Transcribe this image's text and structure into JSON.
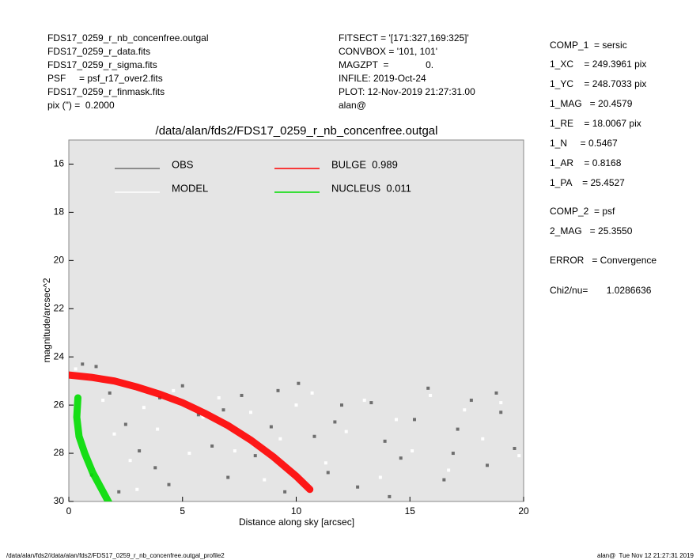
{
  "header": {
    "left": [
      "FDS17_0259_r_nb_concenfree.outgal",
      "FDS17_0259_r_data.fits",
      "FDS17_0259_r_sigma.fits",
      "PSF     = psf_r17_over2.fits",
      "FDS17_0259_r_finmask.fits",
      "pix (\") =  0.2000"
    ],
    "middle": [
      "FITSECT = '[171:327,169:325]'",
      "CONVBOX = '101, 101'",
      "MAGZPT  =              0.",
      "INFILE: 2019-Oct-24",
      "PLOT: 12-Nov-2019 21:27:31.00",
      "alan@"
    ]
  },
  "params": [
    "COMP_1  = sersic",
    "1_XC    = 249.3961 pix",
    "1_YC    = 248.7033 pix",
    "1_MAG   = 20.4579",
    "1_RE    = 18.0067 pix",
    "1_N     = 0.5467",
    "1_AR    = 0.8168",
    "1_PA    = 25.4527",
    "COMP_2  = psf",
    "2_MAG   = 25.3550",
    "ERROR   = Convergence",
    "Chi2/nu=       1.0286636"
  ],
  "footer": {
    "left": "/data/alan/fds2//data/alan/fds2/FDS17_0259_r_nb_concenfree.outgal_profile2",
    "right": "alan@  Tue Nov 12 21:27:31 2019"
  },
  "chart_data": {
    "type": "scatter",
    "title": "/data/alan/fds2/FDS17_0259_r_nb_concenfree.outgal",
    "x_label": "Distance along sky [arcsec]",
    "y_label": "magnitude/arcsec^2",
    "xlim": [
      0,
      20
    ],
    "ylim": [
      30,
      15
    ],
    "xticks": [
      0,
      5,
      10,
      15,
      20
    ],
    "yticks": [
      16,
      18,
      20,
      22,
      24,
      26,
      28,
      30
    ],
    "background": "#e5e5e5",
    "series": [
      {
        "name": "OBS",
        "color": "#6e6e6e",
        "kind": "points",
        "x": [
          0.6,
          1.2,
          1.8,
          2.5,
          3.1,
          3.8,
          4.4,
          5.0,
          5.7,
          6.3,
          7.0,
          7.6,
          8.2,
          8.9,
          9.5,
          10.1,
          10.8,
          11.4,
          12.0,
          12.7,
          13.3,
          13.9,
          14.6,
          15.2,
          15.8,
          16.5,
          17.1,
          17.7,
          18.4,
          19.0,
          19.6,
          2.2,
          4.0,
          6.8,
          9.2,
          11.7,
          14.1,
          16.9,
          18.8,
          1.0
        ],
        "values": [
          24.3,
          24.4,
          25.5,
          26.8,
          27.9,
          28.6,
          29.3,
          25.2,
          26.4,
          27.7,
          29.0,
          25.6,
          28.1,
          26.9,
          29.6,
          25.1,
          27.3,
          28.8,
          26.0,
          29.4,
          25.9,
          27.5,
          28.2,
          26.6,
          25.3,
          29.1,
          27.0,
          25.8,
          28.5,
          26.3,
          27.8,
          29.6,
          25.7,
          26.2,
          25.4,
          26.7,
          29.8,
          28.0,
          25.5,
          28.9
        ]
      },
      {
        "name": "MODEL",
        "color": "#ffffff",
        "kind": "points",
        "x": [
          0.3,
          0.9,
          1.5,
          2.0,
          2.7,
          3.3,
          3.9,
          4.6,
          5.3,
          5.9,
          6.6,
          7.3,
          8.0,
          8.6,
          9.3,
          10.0,
          10.7,
          11.3,
          12.2,
          13.0,
          13.7,
          14.4,
          15.1,
          15.9,
          16.7,
          17.4,
          18.2,
          19.0,
          19.8,
          3.0
        ],
        "values": [
          24.5,
          24.9,
          25.8,
          27.2,
          28.3,
          26.1,
          27.0,
          25.4,
          28.0,
          26.5,
          25.7,
          27.9,
          26.3,
          29.1,
          27.4,
          26.0,
          25.5,
          28.4,
          27.1,
          25.8,
          29.0,
          26.6,
          27.9,
          25.6,
          28.7,
          26.2,
          27.4,
          25.9,
          28.1,
          29.5
        ]
      },
      {
        "name": "BULGE  0.989",
        "color": "#ff0000",
        "kind": "band",
        "x": [
          0,
          1,
          2,
          3,
          4,
          5,
          6,
          7,
          8,
          9,
          10,
          10.6
        ],
        "values": [
          24.75,
          24.85,
          25.0,
          25.25,
          25.55,
          25.9,
          26.35,
          26.85,
          27.45,
          28.15,
          28.95,
          29.5
        ]
      },
      {
        "name": "NUCLEUS  0.011",
        "color": "#00dd00",
        "kind": "band",
        "x": [
          0.4,
          0.35,
          0.45,
          0.7,
          1.05,
          1.45,
          1.85
        ],
        "values": [
          25.7,
          26.5,
          27.3,
          28.0,
          28.8,
          29.5,
          30.2
        ]
      }
    ]
  }
}
